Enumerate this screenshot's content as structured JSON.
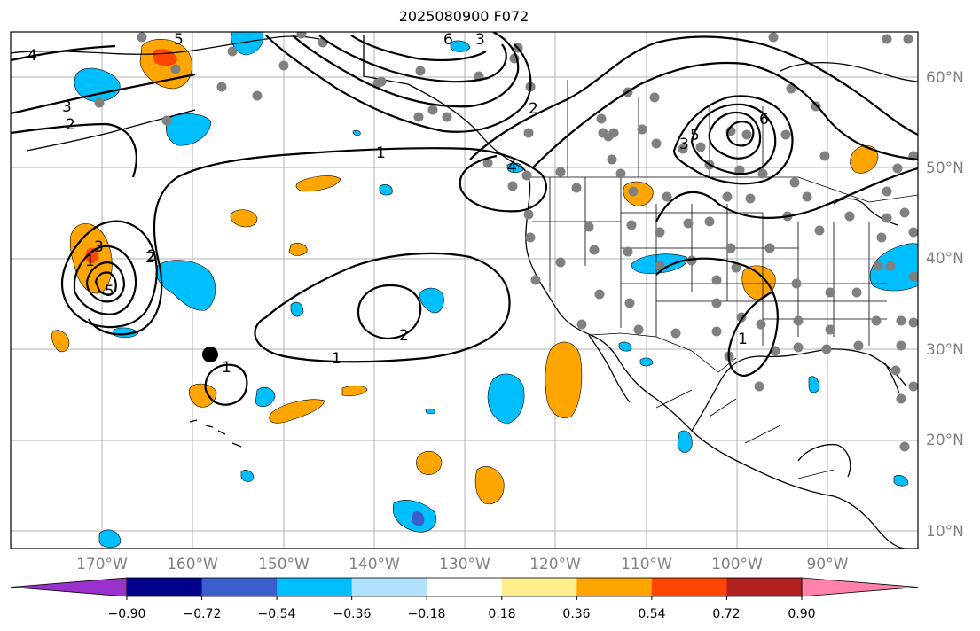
{
  "title": "2025080900 F072",
  "map": {
    "projection": "equirectangular",
    "lon_range": [
      -180,
      -80
    ],
    "lat_range": [
      8,
      65
    ],
    "grid": true
  },
  "lat_labels": [
    "10°N",
    "20°N",
    "30°N",
    "40°N",
    "50°N",
    "60°N"
  ],
  "lon_labels": [
    "170°W",
    "160°W",
    "150°W",
    "140°W",
    "130°W",
    "120°W",
    "110°W",
    "100°W",
    "90°W"
  ],
  "contour_labels": [
    "4",
    "3",
    "2",
    "3",
    "6",
    "5",
    "3",
    "2",
    "6",
    "5",
    "1",
    "4",
    "3",
    "2",
    "5",
    "2",
    "1",
    "2",
    "1",
    "1",
    "1"
  ],
  "colorbar": {
    "colors": [
      "#9932cc",
      "#00008b",
      "#3a5fcd",
      "#00bfff",
      "#b0e2ff",
      "#ffffff",
      "#ffec8b",
      "#ffa500",
      "#ff4500",
      "#b22222",
      "#ff82ab"
    ],
    "tick_labels": [
      "−0.90",
      "−0.72",
      "−0.54",
      "−0.36",
      "−0.18",
      "0.18",
      "0.36",
      "0.54",
      "0.72",
      "0.90"
    ]
  },
  "marker": {
    "label": "black-dot",
    "lat": 29.3,
    "lon": -157.9
  }
}
